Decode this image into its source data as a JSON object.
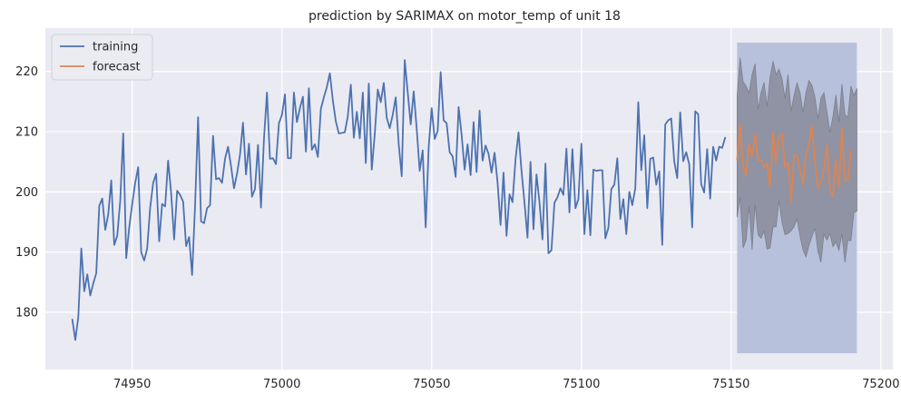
{
  "chart_data": {
    "type": "line",
    "title": "prediction by SARIMAX on motor_temp of unit 18",
    "xlabel": "",
    "ylabel": "",
    "xlim": [
      74921,
      75204
    ],
    "ylim": [
      170.5,
      227.2
    ],
    "x_ticks": [
      74950,
      75000,
      75050,
      75100,
      75150,
      75200
    ],
    "y_ticks": [
      180,
      190,
      200,
      210,
      220
    ],
    "grid": true,
    "legend_position": "top-left",
    "colors": {
      "background": "#eaeaf2",
      "grid": "#ffffff",
      "training": "#4c72b0",
      "forecast": "#dd8452",
      "interval_outer": "#b7c1dc",
      "interval_inner": "#8f93a3"
    },
    "series": [
      {
        "name": "training",
        "x_start": 74930,
        "values": [
          178.8,
          175.4,
          179.2,
          190.6,
          183.5,
          186.3,
          182.8,
          184.8,
          186.5,
          197.7,
          198.9,
          193.7,
          196.3,
          201.9,
          191.2,
          192.7,
          198.5,
          209.7,
          189.0,
          194.1,
          198.0,
          201.5,
          204.1,
          190.0,
          188.6,
          190.6,
          197.4,
          201.5,
          203.0,
          191.8,
          198.0,
          197.6,
          205.2,
          199.8,
          192.1,
          200.2,
          199.5,
          198.4,
          191.0,
          192.5,
          186.2,
          197.8,
          212.4,
          195.1,
          194.8,
          197.3,
          197.8,
          209.3,
          202.1,
          202.3,
          201.5,
          205.5,
          207.5,
          204.3,
          200.6,
          203.0,
          206.2,
          211.5,
          202.9,
          208.0,
          199.2,
          200.5,
          207.8,
          197.4,
          208.8,
          216.5,
          205.5,
          205.6,
          204.6,
          211.4,
          212.8,
          216.2,
          205.6,
          205.6,
          216.5,
          211.6,
          213.9,
          215.8,
          206.7,
          217.2,
          207.0,
          207.9,
          205.8,
          213.8,
          215.7,
          217.4,
          219.7,
          215.2,
          211.7,
          209.7,
          209.8,
          209.9,
          212.6,
          217.8,
          209.0,
          213.3,
          208.9,
          216.5,
          204.8,
          218.0,
          203.7,
          209.6,
          217.0,
          214.9,
          218.1,
          212.3,
          210.6,
          212.8,
          215.7,
          207.9,
          202.6,
          221.9,
          216.6,
          211.2,
          216.7,
          210.5,
          203.5,
          206.9,
          194.1,
          207.4,
          213.9,
          208.8,
          210.1,
          219.9,
          211.9,
          211.4,
          206.6,
          205.9,
          202.5,
          214.1,
          209.5,
          203.7,
          207.9,
          202.8,
          211.6,
          203.3,
          213.5,
          205.2,
          207.7,
          206.3,
          203.2,
          206.5,
          201.6,
          194.5,
          203.2,
          192.7,
          199.6,
          198.3,
          205.4,
          209.9,
          203.5,
          198.2,
          192.4,
          205.0,
          193.8,
          202.9,
          198.3,
          192.1,
          204.7,
          189.8,
          190.3,
          198.2,
          199.1,
          200.6,
          199.5,
          207.2,
          196.6,
          207.1,
          197.3,
          198.8,
          208.0,
          193.0,
          200.3,
          192.8,
          203.7,
          203.5,
          203.6,
          203.6,
          192.3,
          194.0,
          200.5,
          201.2,
          205.6,
          195.5,
          198.8,
          193.0,
          200.0,
          197.8,
          200.6,
          214.9,
          203.6,
          209.4,
          197.3,
          205.5,
          205.7,
          201.2,
          203.4,
          191.2,
          211.2,
          211.9,
          212.2,
          205.1,
          202.3,
          213.2,
          205.1,
          206.6,
          204.6,
          194.1,
          213.4,
          212.9,
          201.3,
          199.9,
          207.1,
          198.9,
          207.5,
          205.2,
          207.5,
          207.3,
          209.0
        ]
      },
      {
        "name": "forecast",
        "x_start": 75152,
        "values": [
          205.3,
          211.2,
          204.5,
          202.7,
          208.0,
          206.0,
          209.6,
          205.2,
          205.4,
          204.0,
          204.7,
          200.9,
          210.0,
          204.8,
          209.2,
          209.6,
          204.1,
          204.8,
          198.3,
          206.1,
          206.0,
          203.6,
          201.3,
          206.0,
          208.0,
          210.9,
          205.0,
          200.6,
          201.7,
          203.9,
          207.7,
          200.4,
          199.1,
          205.5,
          200.8,
          210.6,
          201.9,
          202.0,
          206.9
        ]
      }
    ],
    "intervals": [
      {
        "type": "outer",
        "x_range": [
          75152,
          75192
        ],
        "y_range": [
          173.2,
          224.8
        ]
      },
      {
        "type": "inner",
        "x": [
          75152,
          75153,
          75154,
          75155,
          75156,
          75157,
          75158,
          75159,
          75160,
          75161,
          75162,
          75163,
          75164,
          75165,
          75166,
          75167,
          75168,
          75169,
          75170,
          75171,
          75172,
          75173,
          75174,
          75175,
          75176,
          75177,
          75178,
          75179,
          75180,
          75181,
          75182,
          75183,
          75184,
          75185,
          75186,
          75187,
          75188,
          75189,
          75190,
          75191,
          75192
        ],
        "upper": [
          216.0,
          222.3,
          218.3,
          217.6,
          216.4,
          219.5,
          221.3,
          213.7,
          216.5,
          218.2,
          214.2,
          219.0,
          221.7,
          219.5,
          220.4,
          218.8,
          215.5,
          219.5,
          213.4,
          216.0,
          218.1,
          216.5,
          213.2,
          216.5,
          218.5,
          217.7,
          215.7,
          212.2,
          215.6,
          216.5,
          213.3,
          209.9,
          212.5,
          216.1,
          211.6,
          217.9,
          212.8,
          212.4,
          217.6,
          216.0,
          217.2
        ],
        "lower": [
          195.8,
          199.1,
          190.7,
          192.0,
          197.6,
          190.4,
          197.9,
          192.9,
          192.3,
          193.5,
          190.5,
          190.7,
          194.2,
          194.2,
          198.6,
          194.9,
          192.9,
          193.1,
          193.5,
          194.2,
          195.5,
          192.7,
          190.4,
          189.2,
          191.1,
          192.6,
          194.0,
          190.1,
          188.3,
          193.0,
          192.0,
          193.1,
          190.9,
          191.7,
          190.3,
          193.0,
          188.3,
          192.0,
          191.9,
          196.6,
          196.8
        ]
      }
    ]
  }
}
